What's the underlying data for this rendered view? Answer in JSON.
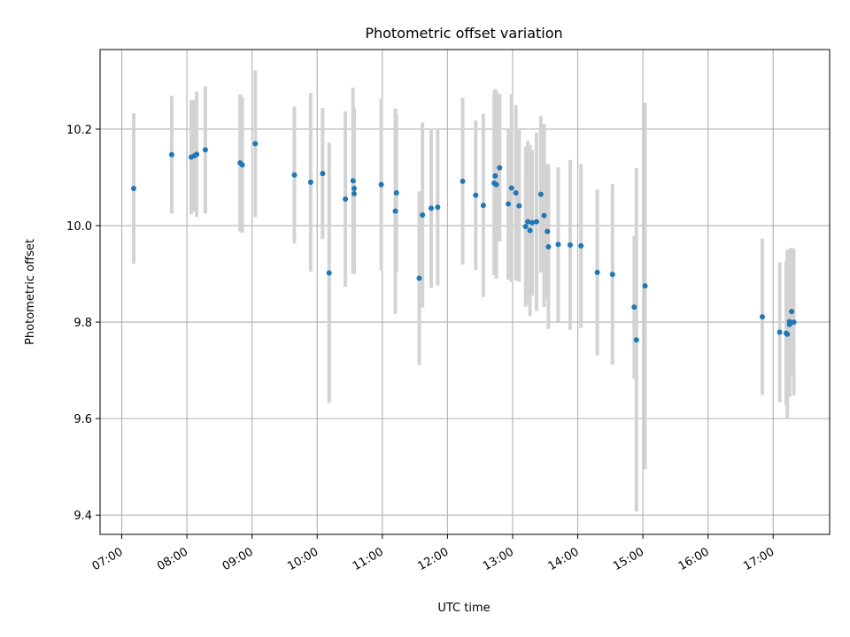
{
  "chart_data": {
    "type": "scatter",
    "title": "Photometric offset variation",
    "xlabel": "UTC time",
    "ylabel": "Photometric offset",
    "x_unit": "hours UTC",
    "xlim": [
      "06:40",
      "17:52"
    ],
    "ylim": [
      9.36,
      10.365
    ],
    "grid": true,
    "x_ticks": [
      "07:00",
      "08:00",
      "09:00",
      "10:00",
      "11:00",
      "12:00",
      "13:00",
      "14:00",
      "15:00",
      "16:00",
      "17:00"
    ],
    "y_ticks": [
      "9.4",
      "9.6",
      "9.8",
      "10.0",
      "10.2"
    ],
    "colors": {
      "point": "#1f77b4",
      "errorbar": "#d3d3d3",
      "grid": "#b0b0b0"
    },
    "series": [
      {
        "x": [
          "07:11",
          "07:46",
          "08:04",
          "08:07",
          "08:09",
          "08:17",
          "08:49",
          "08:51",
          "09:03",
          "09:39",
          "09:54",
          "10:05",
          "10:11",
          "10:26",
          "10:33",
          "10:34",
          "10:34",
          "10:59",
          "11:12",
          "11:13",
          "11:34",
          "11:37",
          "11:45",
          "11:51",
          "12:14",
          "12:26",
          "12:33",
          "12:43",
          "12:44",
          "12:45",
          "12:48",
          "12:56",
          "12:59",
          "13:03",
          "13:06",
          "13:12",
          "13:14",
          "13:16",
          "13:18",
          "13:22",
          "13:26",
          "13:29",
          "13:32",
          "13:33",
          "13:42",
          "13:53",
          "14:03",
          "14:18",
          "14:32",
          "14:52",
          "14:54",
          "15:02",
          "16:50",
          "17:06",
          "17:12",
          "17:13",
          "17:15",
          "17:15",
          "17:17",
          "17:19"
        ],
        "y": [
          10.077,
          10.147,
          10.142,
          10.145,
          10.148,
          10.157,
          10.13,
          10.126,
          10.17,
          10.105,
          10.09,
          10.108,
          9.902,
          10.055,
          10.093,
          10.077,
          10.066,
          10.085,
          10.03,
          10.068,
          9.891,
          10.022,
          10.036,
          10.038,
          10.092,
          10.063,
          10.042,
          10.088,
          10.103,
          10.085,
          10.12,
          10.045,
          10.078,
          10.068,
          10.041,
          9.998,
          10.008,
          9.99,
          10.006,
          10.008,
          10.065,
          10.021,
          9.988,
          9.956,
          9.961,
          9.96,
          9.958,
          9.903,
          9.899,
          9.831,
          9.763,
          9.875,
          9.811,
          9.779,
          9.777,
          9.775,
          9.795,
          9.801,
          9.822,
          9.8
        ],
        "err": [
          0.156,
          0.122,
          0.118,
          0.116,
          0.13,
          0.132,
          0.142,
          0.141,
          0.152,
          0.142,
          0.185,
          0.136,
          0.27,
          0.182,
          0.193,
          0.168,
          0.166,
          0.178,
          0.213,
          0.163,
          0.18,
          0.192,
          0.165,
          0.162,
          0.173,
          0.155,
          0.19,
          0.191,
          0.18,
          0.195,
          0.153,
          0.157,
          0.195,
          0.182,
          0.157,
          0.166,
          0.168,
          0.177,
          0.151,
          0.185,
          0.162,
          0.19,
          0.14,
          0.17,
          0.16,
          0.176,
          0.17,
          0.172,
          0.187,
          0.148,
          0.356,
          0.38,
          0.162,
          0.145,
          0.149,
          0.175,
          0.15,
          0.151,
          0.132,
          0.152
        ]
      }
    ]
  }
}
